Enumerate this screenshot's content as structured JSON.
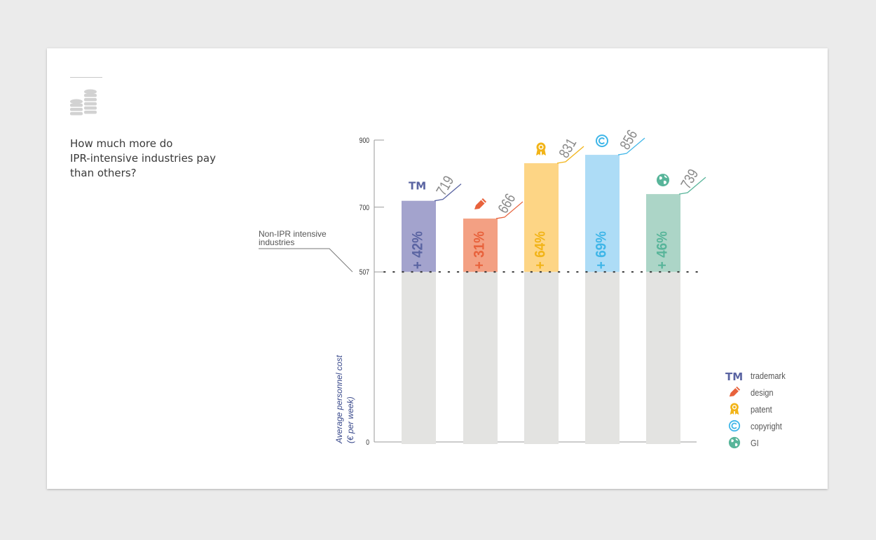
{
  "question_lines": [
    "How much more do",
    "IPR-intensive industries pay",
    "than others?"
  ],
  "chart_data": {
    "type": "bar",
    "ylabel_lines": [
      "Average personnel cost",
      "(€ per week)"
    ],
    "ylim": [
      0,
      900
    ],
    "y_ticks": [
      0,
      507,
      700,
      900
    ],
    "baseline": {
      "value": 507,
      "label_lines": [
        "Non-IPR intensive",
        "industries"
      ]
    },
    "categories": [
      "trademark",
      "design",
      "patent",
      "copyright",
      "GI"
    ],
    "values": [
      719,
      666,
      831,
      856,
      739
    ],
    "premium_labels": [
      "+ 42%",
      "+ 31%",
      "+ 64%",
      "+ 69%",
      "+ 46%"
    ],
    "colors": [
      "#a3a3cd",
      "#f3a083",
      "#fdd585",
      "#addcf6",
      "#acd5c7"
    ],
    "label_colors": [
      "#5a64a2",
      "#e8623c",
      "#f2b418",
      "#3fb6e8",
      "#58b59a"
    ],
    "icons": [
      "tm-icon",
      "pencil-icon",
      "award-ribbon-icon",
      "copyright-icon",
      "globe-icon"
    ],
    "grey_bar_color": "#e3e3e1",
    "grid": false
  },
  "legend": [
    {
      "icon": "tm-icon",
      "label": "trademark"
    },
    {
      "icon": "pencil-icon",
      "label": "design"
    },
    {
      "icon": "award-ribbon-icon",
      "label": "patent"
    },
    {
      "icon": "copyright-icon",
      "label": "copyright"
    },
    {
      "icon": "globe-icon",
      "label": "GI"
    }
  ]
}
